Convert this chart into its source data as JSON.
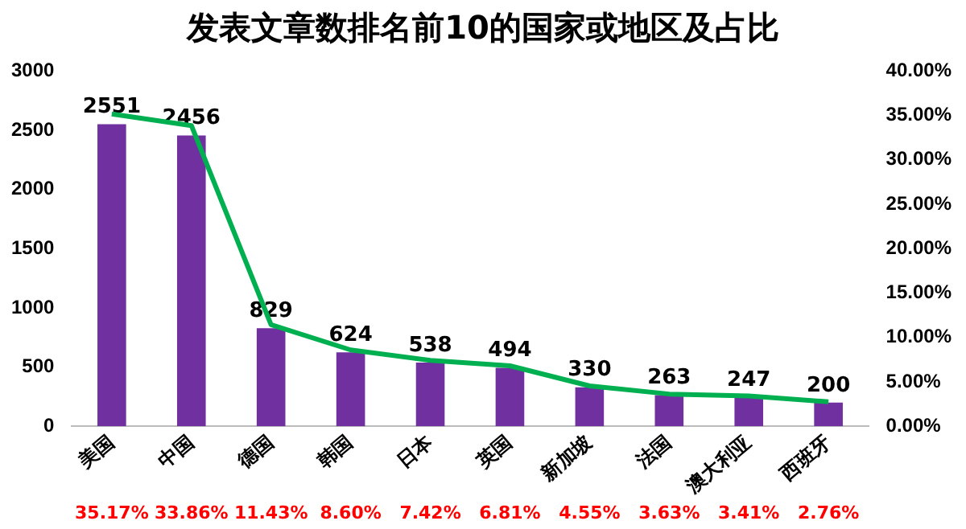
{
  "chart_data": {
    "type": "bar",
    "title": "发表文章数排名前10的国家或地区及占比",
    "categories": [
      "美国",
      "中国",
      "德国",
      "韩国",
      "日本",
      "英国",
      "新加坡",
      "法国",
      "澳大利亚",
      "西班牙"
    ],
    "series": [
      {
        "color": "#7030a0",
        "values": [
          2551,
          2456,
          829,
          624,
          538,
          494,
          330,
          263,
          247,
          200
        ],
        "data_labels": true
      },
      {
        "type": "line",
        "axis": "y2",
        "color": "#00b050",
        "marker": "none",
        "values": [
          35.17,
          33.86,
          11.43,
          8.6,
          7.42,
          6.81,
          4.55,
          3.63,
          3.41,
          2.76
        ],
        "value_labels": [
          "35.17%",
          "33.86%",
          "11.43%",
          "8.60%",
          "7.42%",
          "6.81%",
          "4.55%",
          "3.63%",
          "3.41%",
          "2.76%"
        ]
      }
    ],
    "ylim": [
      0,
      3000
    ],
    "yticks": [
      0,
      500,
      1000,
      1500,
      2000,
      2500,
      3000
    ],
    "y2lim": [
      0,
      40
    ],
    "y2ticks": [
      {
        "value": 0,
        "label": "0.00%"
      },
      {
        "value": 5,
        "label": "5.00%"
      },
      {
        "value": 10,
        "label": "10.00%"
      },
      {
        "value": 15,
        "label": "15.00%"
      },
      {
        "value": 20,
        "label": "20.00%"
      },
      {
        "value": 25,
        "label": "25.00%"
      },
      {
        "value": 30,
        "label": "30.00%"
      },
      {
        "value": 35,
        "label": "35.00%"
      },
      {
        "value": 40,
        "label": "40.00%"
      }
    ],
    "grid": false,
    "legend": false
  }
}
